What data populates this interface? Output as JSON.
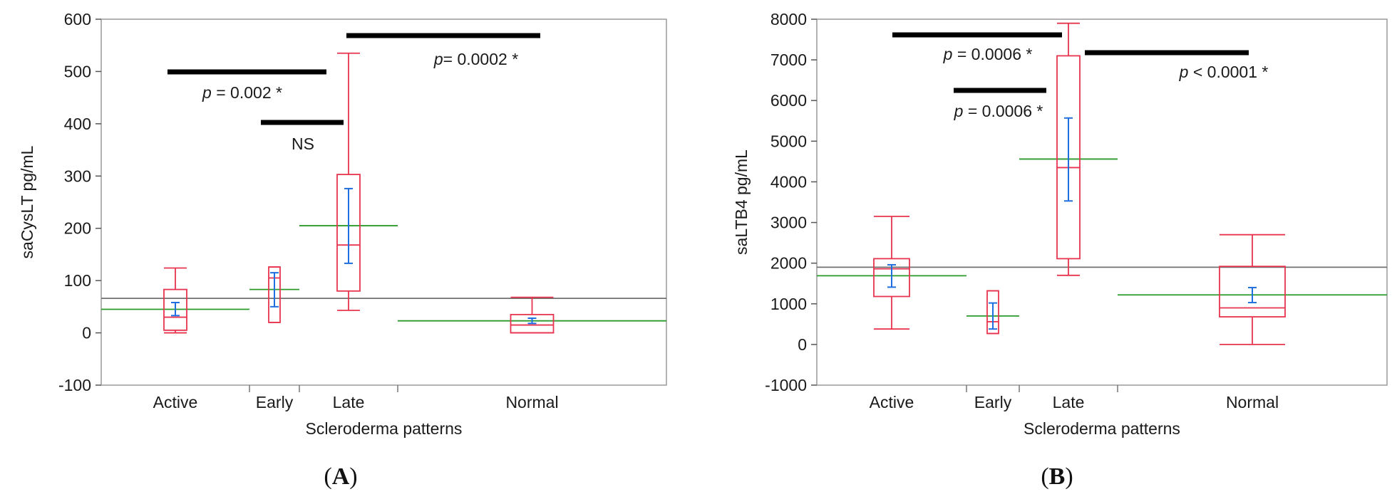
{
  "chart_data": [
    {
      "type": "box",
      "panel": "A",
      "xlabel": "Scleroderma patterns",
      "ylabel": "saCysLT pg/mL",
      "ylim": [
        -100,
        600
      ],
      "yticks": [
        -100,
        0,
        100,
        200,
        300,
        400,
        500,
        600
      ],
      "grand_mean": 66,
      "categories": [
        {
          "name": "Active",
          "min": 0,
          "q1": 5,
          "median": 30,
          "q3": 83,
          "max": 124,
          "mean": 45,
          "ci": [
            33,
            58
          ]
        },
        {
          "name": "Early",
          "min": 20,
          "q1": 20,
          "median": 105,
          "q3": 126,
          "max": 126,
          "mean": 83,
          "ci": [
            50,
            115
          ]
        },
        {
          "name": "Late",
          "min": 43,
          "q1": 80,
          "median": 168,
          "q3": 303,
          "max": 535,
          "mean": 205,
          "ci": [
            133,
            276
          ]
        },
        {
          "name": "Normal",
          "min": 0,
          "q1": 0,
          "median": 15,
          "q3": 35,
          "max": 68,
          "mean": 23,
          "ci": [
            18,
            28
          ]
        }
      ],
      "comparisons": [
        {
          "p": "p",
          "rest": " = 0.002 *"
        },
        {
          "text": "NS"
        },
        {
          "p": "p",
          "rest": "= 0.0002 *"
        }
      ]
    },
    {
      "type": "box",
      "panel": "B",
      "xlabel": "Scleroderma patterns",
      "ylabel": "saLTB4 pg/mL",
      "ylim": [
        -1000,
        8000
      ],
      "yticks": [
        -1000,
        0,
        1000,
        2000,
        3000,
        4000,
        5000,
        6000,
        7000,
        8000
      ],
      "grand_mean": 1900,
      "categories": [
        {
          "name": "Active",
          "min": 380,
          "q1": 1180,
          "median": 1860,
          "q3": 2110,
          "max": 3150,
          "mean": 1690,
          "ci": [
            1410,
            1960
          ]
        },
        {
          "name": "Early",
          "min": 270,
          "q1": 270,
          "median": 560,
          "q3": 1320,
          "max": 1320,
          "mean": 700,
          "ci": [
            380,
            1020
          ]
        },
        {
          "name": "Late",
          "min": 1700,
          "q1": 2110,
          "median": 4350,
          "q3": 7100,
          "max": 7900,
          "mean": 4560,
          "ci": [
            3530,
            5570
          ]
        },
        {
          "name": "Normal",
          "min": 0,
          "q1": 680,
          "median": 900,
          "q3": 1920,
          "max": 2700,
          "mean": 1220,
          "ci": [
            1030,
            1400
          ]
        }
      ],
      "comparisons": [
        {
          "p": "p",
          "rest": " = 0.0006 *"
        },
        {
          "p": "p",
          "rest": " = 0.0006 *"
        },
        {
          "p": "p",
          "rest": " < 0.0001 *"
        }
      ]
    }
  ],
  "panel_labels": {
    "a": {
      "open": "(",
      "letter": "A",
      "close": ")"
    },
    "b": {
      "open": "(",
      "letter": "B",
      "close": ")"
    }
  },
  "colors": {
    "box": "#e8344e",
    "ci": "#1f6fe0",
    "group_mean": "#2a9a2a",
    "grand_mean": "#707070",
    "frame": "#9a9a9a",
    "sig_bar": "#000000"
  }
}
